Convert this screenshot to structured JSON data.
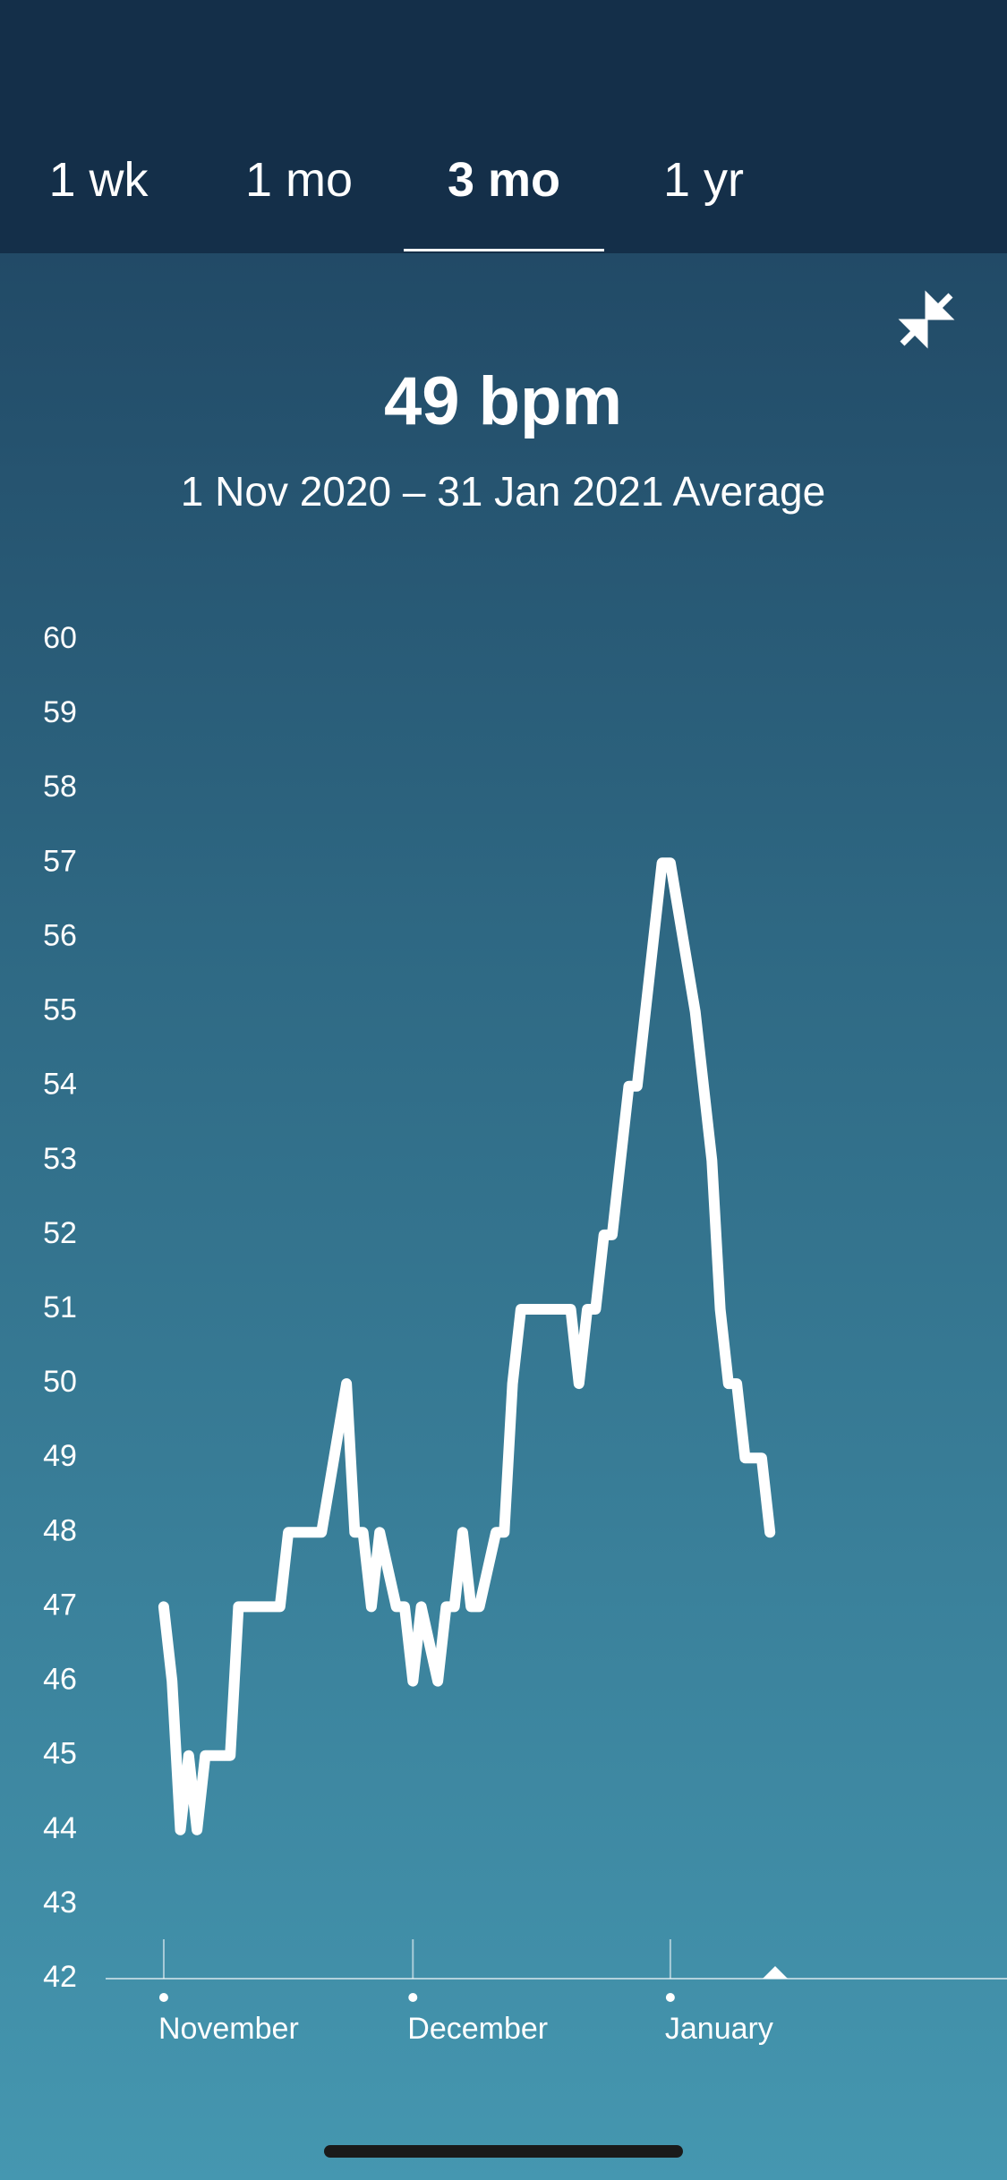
{
  "tabs": [
    "1 wk",
    "1 mo",
    "3 mo",
    "1 yr"
  ],
  "selected_tab": 2,
  "chart_data": {
    "type": "line",
    "title": "49 bpm",
    "subtitle": "1 Nov 2020 – 31 Jan 2021 Average",
    "x": [
      0,
      1,
      2,
      3,
      4,
      5,
      8,
      9,
      14,
      15,
      19,
      22,
      23,
      24,
      25,
      26,
      28,
      29,
      30,
      31,
      33,
      34,
      35,
      36,
      37,
      38,
      40,
      41,
      42,
      43,
      49,
      50,
      51,
      52,
      53,
      54,
      56,
      57,
      60,
      61,
      64,
      66,
      67,
      68,
      69,
      70,
      72,
      73
    ],
    "series": [
      {
        "color": "#ffffff",
        "values": [
          47,
          46,
          44,
          45,
          44,
          45,
          45,
          47,
          47,
          48,
          48,
          50,
          48,
          48,
          47,
          48,
          47,
          47,
          46,
          47,
          46,
          47,
          47,
          48,
          47,
          47,
          48,
          48,
          50,
          51,
          51,
          50,
          51,
          51,
          52,
          52,
          54,
          54,
          57,
          57,
          55,
          53,
          51,
          50,
          50,
          49,
          49,
          48
        ]
      }
    ],
    "xlim": [
      -7,
      101
    ],
    "xticks": [
      {
        "value": 0,
        "label": "November"
      },
      {
        "value": 30,
        "label": "December"
      },
      {
        "value": 61,
        "label": "January"
      }
    ],
    "ylim": [
      42,
      60
    ],
    "yticks": [
      42,
      43,
      44,
      45,
      46,
      47,
      48,
      49,
      50,
      51,
      52,
      53,
      54,
      55,
      56,
      57,
      58,
      59,
      60
    ]
  }
}
